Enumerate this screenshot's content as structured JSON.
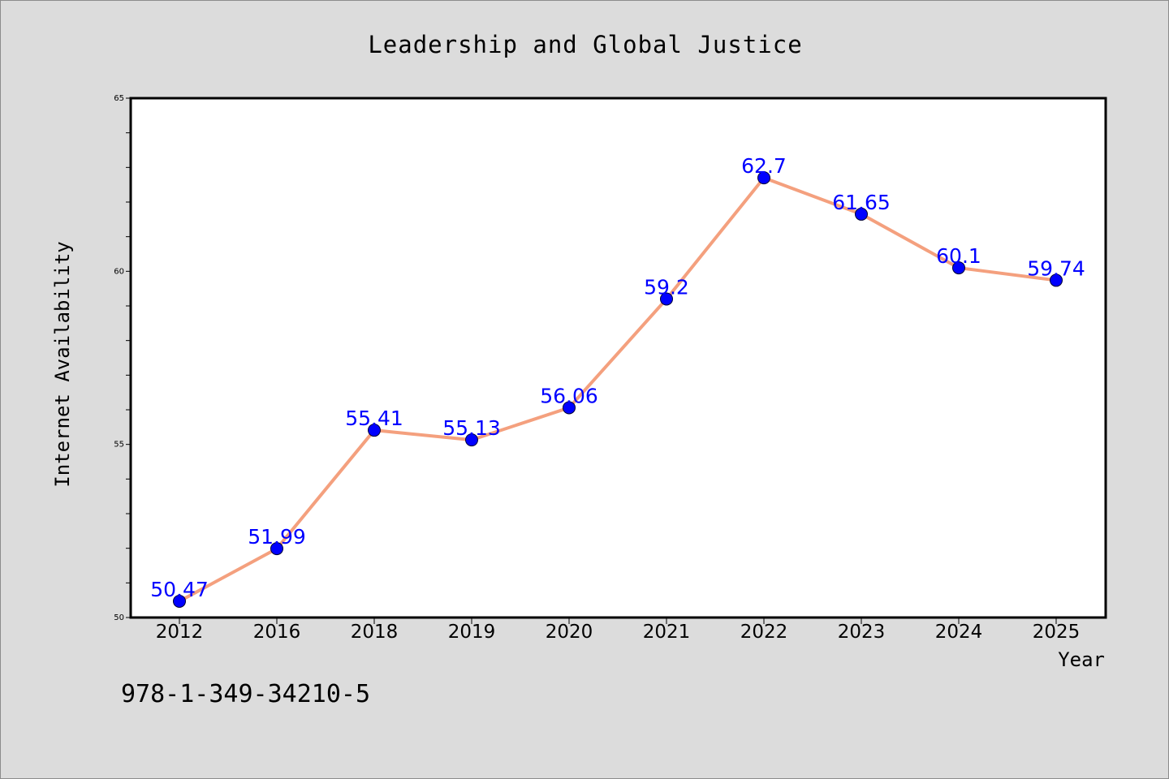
{
  "chart_data": {
    "type": "line",
    "title": "Leadership and Global Justice",
    "xlabel": "Year",
    "ylabel": "Internet Availability",
    "categories": [
      "2012",
      "2016",
      "2018",
      "2019",
      "2020",
      "2021",
      "2022",
      "2023",
      "2024",
      "2025"
    ],
    "series": [
      {
        "values": [
          50.47,
          51.99,
          55.41,
          55.13,
          56.06,
          59.2,
          62.7,
          61.65,
          60.1,
          59.74
        ],
        "data_labels": [
          "50.47",
          "51.99",
          "55.41",
          "55.13",
          "56.06",
          "59.2",
          "62.7",
          "61.65",
          "60.1",
          "59.74"
        ],
        "line_color": "#f4a07e",
        "marker_color": "#0000ff"
      }
    ],
    "ylim": [
      50,
      65
    ],
    "yticks": [
      "50",
      "55",
      "60",
      "65"
    ],
    "grid": false,
    "label_color": "#0000ff"
  },
  "footnote": "978-1-349-34210-5"
}
